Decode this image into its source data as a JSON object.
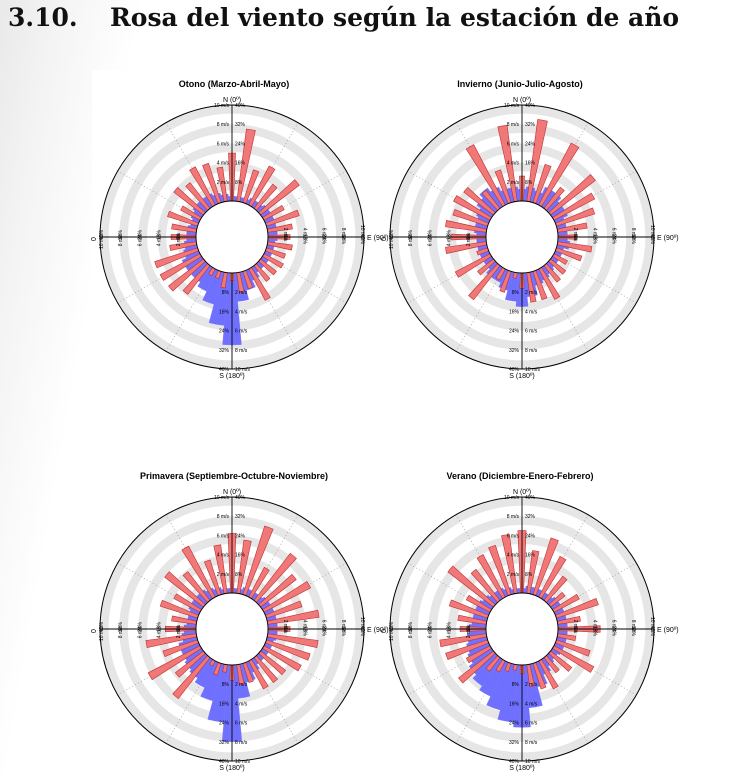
{
  "header": {
    "section_number": "3.10.",
    "title": "Rosa del viento según la estación de año"
  },
  "colors": {
    "frequency_fill": "#7070ff",
    "frequency_stroke": "#5a5ae8",
    "speed_fill": "#f07878",
    "speed_stroke": "#c03030",
    "ring_band": "#e6e6e6"
  },
  "axis_labels": {
    "north": "N (0º)",
    "south": "S (180º)",
    "east": "E (90º)",
    "west": "0"
  },
  "speed_ticks": [
    "2 m/s",
    "4 m/s",
    "6 m/s",
    "8 m/s",
    "10 m/s"
  ],
  "frequency_ticks": [
    "8%",
    "16%",
    "24%",
    "32%",
    "40%"
  ],
  "chart_data": [
    {
      "type": "polar-bar",
      "title": "Otono (Marzo-Abril-Mayo)",
      "directions_deg": [
        0,
        10,
        20,
        30,
        40,
        50,
        60,
        70,
        80,
        90,
        100,
        110,
        120,
        130,
        140,
        150,
        160,
        170,
        180,
        190,
        200,
        210,
        220,
        230,
        240,
        250,
        260,
        270,
        280,
        290,
        300,
        310,
        320,
        330,
        340,
        350
      ],
      "frequency_pct": [
        2,
        2,
        2,
        3,
        3,
        4,
        4,
        4,
        4,
        4,
        3,
        3,
        3,
        3,
        3,
        5,
        8,
        12,
        30,
        22,
        14,
        10,
        8,
        8,
        8,
        6,
        5,
        4,
        4,
        3,
        4,
        5,
        5,
        5,
        4,
        3
      ],
      "mean_speed_ms": [
        5.0,
        7.6,
        3.6,
        4.6,
        3.2,
        5.1,
        2.4,
        3.6,
        2.6,
        2.3,
        2.6,
        2.1,
        2.3,
        2.1,
        2.1,
        3.7,
        1.9,
        2.1,
        0.8,
        1.6,
        0.8,
        0.8,
        3.8,
        4.6,
        4.7,
        4.7,
        2.8,
        2.6,
        2.6,
        3.3,
        2.3,
        3.9,
        3.4,
        4.5,
        4.3,
        3.6
      ],
      "speed_axis": [
        0,
        10
      ],
      "frequency_axis": [
        0,
        40
      ]
    },
    {
      "type": "polar-bar",
      "title": "Invierno (Junio-Julio-Agosto)",
      "directions_deg": [
        0,
        10,
        20,
        30,
        40,
        50,
        60,
        70,
        80,
        90,
        100,
        110,
        120,
        130,
        140,
        150,
        160,
        170,
        180,
        190,
        200,
        210,
        220,
        230,
        240,
        250,
        260,
        270,
        280,
        290,
        300,
        310,
        320,
        330,
        340,
        350
      ],
      "frequency_pct": [
        5,
        6,
        5,
        8,
        8,
        6,
        6,
        4,
        4,
        4,
        5,
        3,
        3,
        3,
        4,
        5,
        6,
        10,
        14,
        12,
        8,
        6,
        6,
        4,
        4,
        4,
        4,
        4,
        5,
        5,
        6,
        8,
        10,
        8,
        6,
        6
      ],
      "mean_speed_ms": [
        2.6,
        8.6,
        4.2,
        7.3,
        2.8,
        5.9,
        4.8,
        4.2,
        3.1,
        1.9,
        3.6,
        2.8,
        1.6,
        2.0,
        2.2,
        3.6,
        3.1,
        3.1,
        1.6,
        0.6,
        2.3,
        1.3,
        4.5,
        2.1,
        4.1,
        1.2,
        4.3,
        3.6,
        4.3,
        3.8,
        4.3,
        3.9,
        2.4,
        7.1,
        3.6,
        8.0
      ],
      "speed_axis": [
        0,
        10
      ],
      "frequency_axis": [
        0,
        40
      ]
    },
    {
      "type": "polar-bar",
      "title": "Primavera (Septiembre-Octubre-Noviembre)",
      "directions_deg": [
        0,
        10,
        20,
        30,
        40,
        50,
        60,
        70,
        80,
        90,
        100,
        110,
        120,
        130,
        140,
        150,
        160,
        170,
        180,
        190,
        200,
        210,
        220,
        230,
        240,
        250,
        260,
        270,
        280,
        290,
        300,
        310,
        320,
        330,
        340,
        350
      ],
      "frequency_pct": [
        2,
        2,
        3,
        3,
        3,
        4,
        4,
        4,
        4,
        4,
        4,
        3,
        3,
        3,
        3,
        5,
        8,
        14,
        32,
        24,
        16,
        12,
        10,
        9,
        8,
        8,
        6,
        5,
        4,
        4,
        5,
        5,
        5,
        4,
        3,
        2
      ],
      "mean_speed_ms": [
        6.2,
        5.6,
        7.5,
        3.5,
        6.2,
        4.7,
        5.5,
        3.9,
        5.4,
        2.3,
        5.3,
        4.8,
        4.4,
        3.3,
        3.3,
        3.3,
        2.1,
        2.1,
        1.6,
        0.8,
        1.3,
        0.6,
        5.4,
        3.7,
        6.1,
        3.8,
        5.3,
        3.2,
        2.6,
        4.1,
        3.1,
        5.1,
        3.8,
        6.0,
        3.8,
        5.1
      ],
      "speed_axis": [
        0,
        10
      ],
      "frequency_axis": [
        0,
        40
      ]
    },
    {
      "type": "polar-bar",
      "title": "Verano (Diciembre-Enero-Febrero)",
      "directions_deg": [
        0,
        10,
        20,
        30,
        40,
        50,
        60,
        70,
        80,
        90,
        100,
        110,
        120,
        130,
        140,
        150,
        160,
        170,
        180,
        190,
        200,
        210,
        220,
        230,
        240,
        250,
        260,
        270,
        280,
        290,
        300,
        310,
        320,
        330,
        340,
        350
      ],
      "frequency_pct": [
        2,
        3,
        3,
        3,
        3,
        4,
        4,
        4,
        4,
        4,
        4,
        4,
        4,
        3,
        4,
        6,
        10,
        18,
        26,
        24,
        20,
        16,
        14,
        12,
        10,
        9,
        8,
        7,
        6,
        6,
        6,
        5,
        4,
        4,
        3,
        2
      ],
      "mean_speed_ms": [
        6.5,
        4.5,
        6.2,
        4.8,
        3.2,
        1.9,
        3.0,
        4.6,
        2.4,
        4.4,
        1.9,
        3.7,
        4.7,
        2.8,
        2.0,
        3.3,
        2.8,
        2.3,
        0.9,
        0.6,
        0.9,
        1.3,
        1.8,
        4.6,
        2.8,
        4.6,
        4.9,
        2.7,
        3.0,
        4.2,
        2.8,
        6.0,
        4.1,
        5.0,
        5.4,
        6.2
      ],
      "speed_axis": [
        0,
        10
      ],
      "frequency_axis": [
        0,
        40
      ]
    }
  ]
}
